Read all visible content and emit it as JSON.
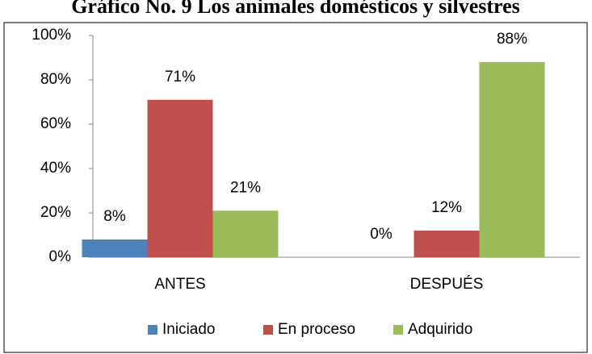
{
  "chart_data": {
    "type": "bar",
    "title": "Gráfico No. 9 Los animales domésticos y silvestres",
    "categories": [
      "ANTES",
      "DESPUÉS"
    ],
    "series": [
      {
        "name": "Iniciado",
        "color": "#4f81bd",
        "values": [
          8,
          0
        ],
        "value_labels": [
          "8%",
          "0%"
        ]
      },
      {
        "name": "En proceso",
        "color": "#c0504d",
        "values": [
          71,
          12
        ],
        "value_labels": [
          "71%",
          "12%"
        ]
      },
      {
        "name": "Adquirido",
        "color": "#9bbb59",
        "values": [
          21,
          88
        ],
        "value_labels": [
          "21%",
          "88%"
        ]
      }
    ],
    "ylim": [
      0,
      100
    ],
    "yticks": [
      {
        "value": 0,
        "label": "0%"
      },
      {
        "value": 20,
        "label": "20%"
      },
      {
        "value": 40,
        "label": "40%"
      },
      {
        "value": 60,
        "label": "60%"
      },
      {
        "value": 80,
        "label": "80%"
      },
      {
        "value": 100,
        "label": "100%"
      }
    ],
    "grid": false,
    "legend": "bottom"
  }
}
